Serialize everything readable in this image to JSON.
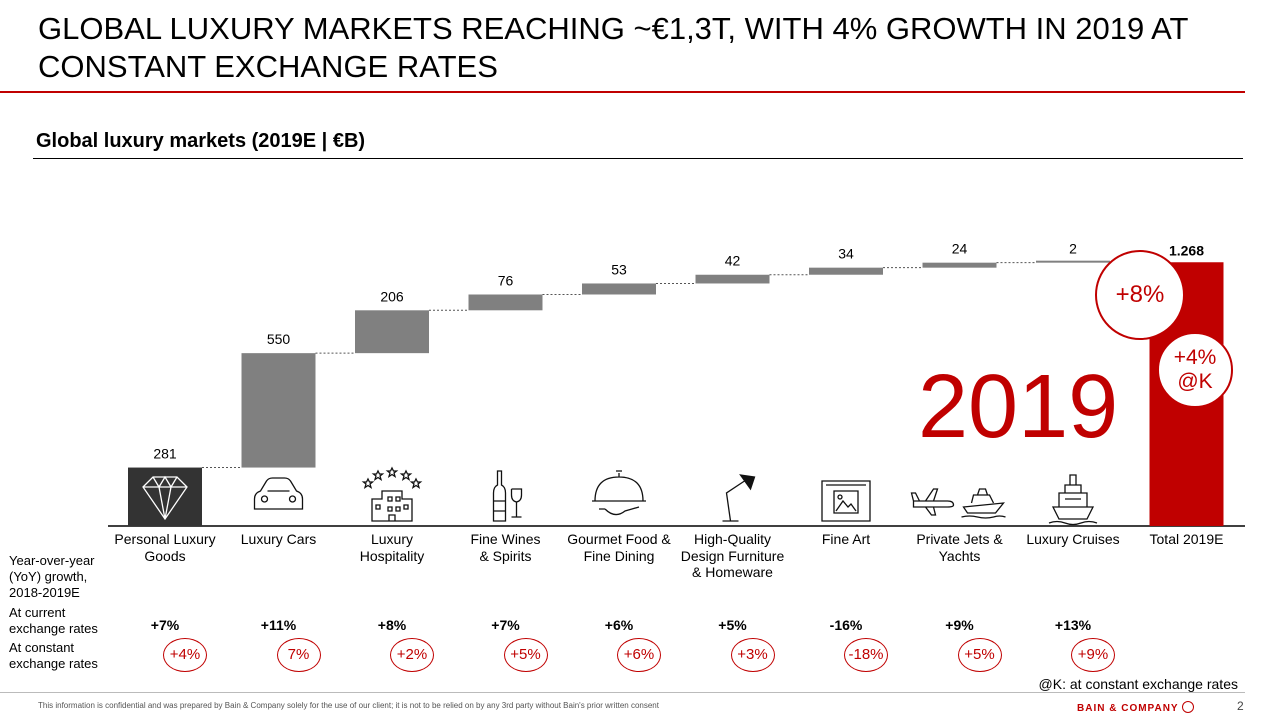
{
  "title": "GLOBAL LUXURY MARKETS REACHING ~€1,3T, WITH 4% GROWTH IN 2019 AT CONSTANT EXCHANGE RATES",
  "chart_data": {
    "type": "bar",
    "title": "Global luxury markets (2019E | €B)",
    "categories": [
      "Personal Luxury Goods",
      "Luxury Cars",
      "Luxury Hospitality",
      "Fine Wines & Spirits",
      "Gourmet Food & Fine Dining",
      "High-Quality Design Furniture & Homeware",
      "Fine Art",
      "Private Jets & Yachts",
      "Luxury Cruises",
      "Total 2019E"
    ],
    "values": [
      281,
      550,
      206,
      76,
      53,
      42,
      34,
      24,
      2,
      1268
    ],
    "value_labels": [
      "281",
      "550",
      "206",
      "76",
      "53",
      "42",
      "34",
      "24",
      "2",
      "1.268"
    ],
    "total_index": 9,
    "icons": [
      "diamond-icon",
      "car-icon",
      "hotel-icon",
      "wine-icon",
      "cloche-icon",
      "lamp-icon",
      "picture-frame-icon",
      "jet-yacht-icon",
      "cruise-ship-icon",
      ""
    ],
    "growth_current": [
      "+7%",
      "+11%",
      "+8%",
      "+7%",
      "+6%",
      "+5%",
      "-16%",
      "+9%",
      "+13%"
    ],
    "growth_constant": [
      "+4%",
      "7%",
      "+2%",
      "+5%",
      "+6%",
      "+3%",
      "-18%",
      "+5%",
      "+9%"
    ],
    "colors": {
      "step": "#808080",
      "first": "#333333",
      "total": "#c00000",
      "accent": "#c00000"
    }
  },
  "highlight": {
    "year": "2019",
    "growth_current": "+8%",
    "growth_constant_line1": "+4%",
    "growth_constant_line2": "@K"
  },
  "row_labels": {
    "yoy": "Year-over-year (YoY) growth, 2018-2019E",
    "current": "At current exchange rates",
    "constant": "At constant exchange rates"
  },
  "note": "@K: at constant exchange rates",
  "footer": "This information is confidential and was prepared by Bain & Company solely for the use of our client; it is not to be relied on by any 3rd party without Bain's prior written consent",
  "brand": "BAIN & COMPANY",
  "page_number": "2"
}
